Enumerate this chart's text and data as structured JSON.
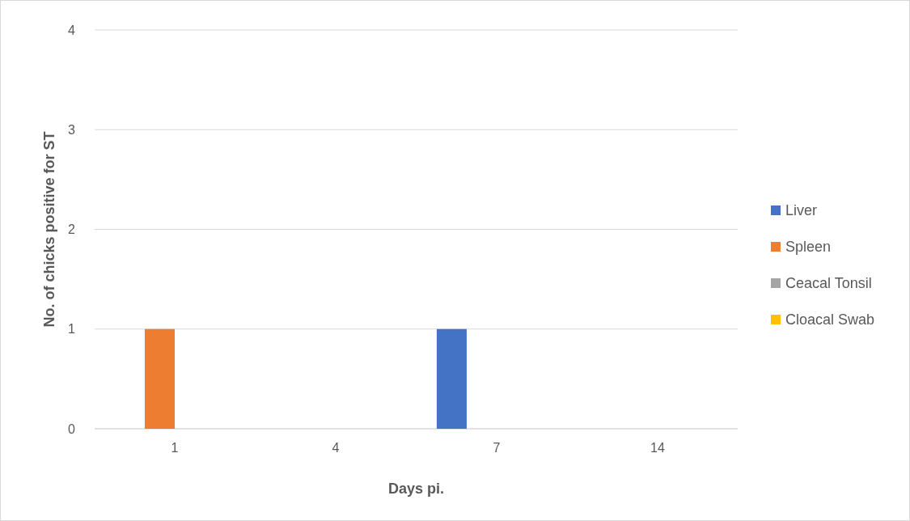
{
  "chart_data": {
    "type": "bar",
    "xlabel": "Days pi.",
    "ylabel": "No. of chicks positive for ST",
    "categories": [
      "1",
      "4",
      "7",
      "14"
    ],
    "series": [
      {
        "name": "Liver",
        "color": "#4472c4",
        "values": [
          0,
          0,
          1,
          0
        ]
      },
      {
        "name": "Spleen",
        "color": "#ed7d31",
        "values": [
          1,
          0,
          0,
          0
        ]
      },
      {
        "name": "Ceacal Tonsil",
        "color": "#a5a5a5",
        "values": [
          0,
          0,
          0,
          0
        ]
      },
      {
        "name": "Cloacal Swab",
        "color": "#ffc000",
        "values": [
          0,
          0,
          0,
          0
        ]
      }
    ],
    "ylim": [
      0,
      4
    ],
    "yticks": [
      0,
      1,
      2,
      3,
      4
    ],
    "grid": "y",
    "legend": "right"
  }
}
